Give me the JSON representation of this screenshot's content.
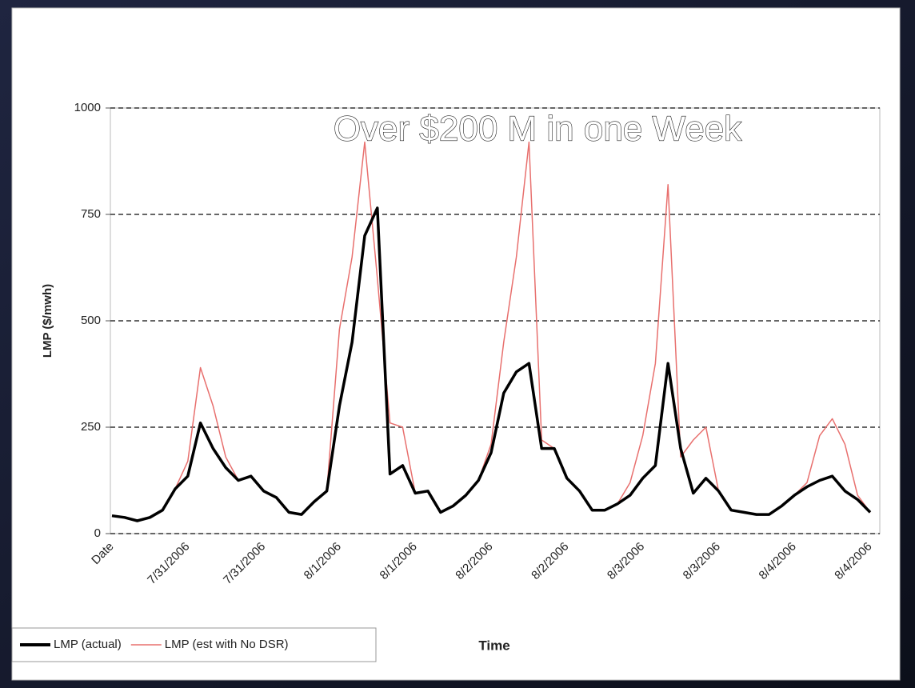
{
  "chart_data": {
    "type": "line",
    "annotation": "Over $200 M in one Week",
    "x_label": "Time",
    "y_label": "LMP ($/mwh)",
    "categories": [
      "Date",
      null,
      null,
      null,
      null,
      null,
      "7/31/2006",
      null,
      null,
      null,
      null,
      null,
      "7/31/2006",
      null,
      null,
      null,
      null,
      null,
      "8/1/2006",
      null,
      null,
      null,
      null,
      null,
      "8/1/2006",
      null,
      null,
      null,
      null,
      null,
      "8/2/2006",
      null,
      null,
      null,
      null,
      null,
      "8/2/2006",
      null,
      null,
      null,
      null,
      null,
      "8/3/2006",
      null,
      null,
      null,
      null,
      null,
      "8/3/2006",
      null,
      null,
      null,
      null,
      null,
      "8/4/2006",
      null,
      null,
      null,
      null,
      null,
      "8/4/2006"
    ],
    "series": [
      {
        "name": "LMP (actual)",
        "color": "#000000",
        "values": [
          42,
          38,
          30,
          38,
          55,
          105,
          135,
          260,
          200,
          155,
          125,
          135,
          100,
          85,
          50,
          45,
          75,
          100,
          300,
          450,
          700,
          765,
          140,
          160,
          95,
          100,
          50,
          65,
          90,
          125,
          190,
          330,
          380,
          400,
          200,
          200,
          130,
          100,
          55,
          55,
          70,
          90,
          130,
          160,
          400,
          200,
          95,
          130,
          100,
          55,
          50,
          45,
          45,
          65,
          90,
          110,
          125,
          135,
          100,
          80,
          50
        ]
      },
      {
        "name": "LMP (est with No DSR)",
        "color": "#e8706e",
        "values": [
          42,
          38,
          30,
          38,
          55,
          105,
          170,
          390,
          300,
          180,
          125,
          135,
          100,
          85,
          50,
          45,
          75,
          100,
          480,
          650,
          920,
          600,
          260,
          250,
          95,
          100,
          50,
          65,
          90,
          125,
          210,
          450,
          650,
          920,
          220,
          200,
          130,
          100,
          55,
          55,
          70,
          120,
          230,
          400,
          820,
          180,
          220,
          250,
          100,
          55,
          50,
          45,
          45,
          65,
          90,
          120,
          230,
          270,
          210,
          90,
          50
        ]
      }
    ],
    "ylim": [
      0,
      1000
    ],
    "yticks": [
      0,
      250,
      500,
      750,
      1000
    ],
    "grid": true,
    "legend": "bottom-left"
  }
}
